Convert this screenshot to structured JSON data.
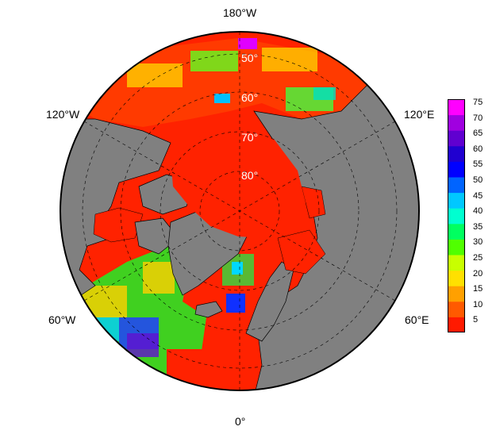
{
  "map": {
    "projection": "north-polar-stereographic",
    "land_color": "#808080",
    "coast_color": "#000000",
    "ocean_low_color": "#ff2200",
    "grid_style": "dashed",
    "longitude_labels": {
      "top": "180°W",
      "bottom": "0°",
      "upper_left": "120°W",
      "upper_right": "120°E",
      "lower_left": "60°W",
      "lower_right": "60°E"
    },
    "latitude_labels": [
      "50°",
      "60°",
      "70°",
      "80°"
    ],
    "latitude_values": [
      50,
      60,
      70,
      80
    ]
  },
  "colorbar": {
    "range": [
      1,
      76
    ],
    "ticks": [
      "5",
      "10",
      "15",
      "20",
      "25",
      "30",
      "35",
      "40",
      "45",
      "50",
      "55",
      "60",
      "65",
      "70",
      "75"
    ],
    "tick_values": [
      5,
      10,
      15,
      20,
      25,
      30,
      35,
      40,
      45,
      50,
      55,
      60,
      65,
      70,
      75
    ],
    "colors": [
      "#ff1a00",
      "#ff5a00",
      "#ffa000",
      "#ffe000",
      "#c8ff00",
      "#50ff00",
      "#00ff60",
      "#00ffd0",
      "#00c8ff",
      "#0064ff",
      "#0000ff",
      "#2000d0",
      "#6000d0",
      "#a000e0",
      "#ff00ff"
    ]
  }
}
